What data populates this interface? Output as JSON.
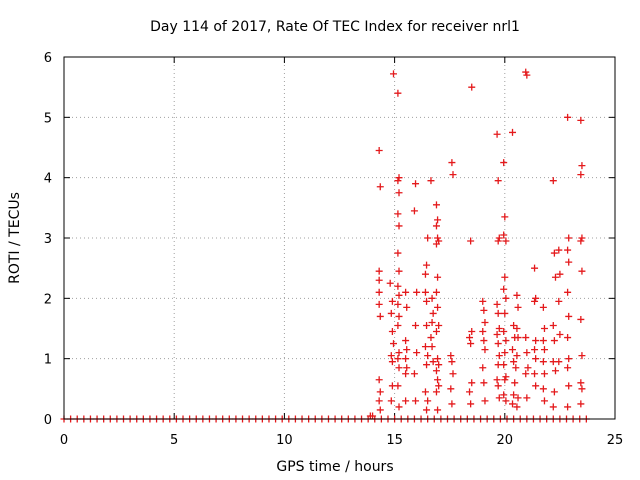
{
  "chart_data": {
    "type": "scatter",
    "title": "Day 114 of 2017, Rate Of TEC Index for receiver nrl1",
    "xlabel": "GPS time / hours",
    "ylabel": "ROTI / TECUs",
    "xlim": [
      0,
      25
    ],
    "ylim": [
      0,
      6
    ],
    "xticks": [
      "0",
      "5",
      "10",
      "15",
      "20",
      "25"
    ],
    "yticks": [
      "0",
      "1",
      "2",
      "3",
      "4",
      "5",
      "6"
    ],
    "grid": true,
    "marker": "plus",
    "color": "#e41a1c",
    "series": [
      {
        "points": [
          [
            0.0,
            0.0
          ],
          [
            0.3,
            0.0
          ],
          [
            0.6,
            0.0
          ],
          [
            0.9,
            0.0
          ],
          [
            1.2,
            0.0
          ],
          [
            1.5,
            0.0
          ],
          [
            1.8,
            0.0
          ],
          [
            2.1,
            0.0
          ],
          [
            2.4,
            0.0
          ],
          [
            2.7,
            0.0
          ],
          [
            3.0,
            0.0
          ],
          [
            3.3,
            0.0
          ],
          [
            3.6,
            0.0
          ],
          [
            3.9,
            0.0
          ],
          [
            4.2,
            0.0
          ],
          [
            4.5,
            0.0
          ],
          [
            4.8,
            0.0
          ],
          [
            5.1,
            0.0
          ],
          [
            5.4,
            0.0
          ],
          [
            5.7,
            0.0
          ],
          [
            6.0,
            0.0
          ],
          [
            6.3,
            0.0
          ],
          [
            6.6,
            0.0
          ],
          [
            6.9,
            0.0
          ],
          [
            7.2,
            0.0
          ],
          [
            7.5,
            0.0
          ],
          [
            7.8,
            0.0
          ],
          [
            8.1,
            0.0
          ],
          [
            8.4,
            0.0
          ],
          [
            8.7,
            0.0
          ],
          [
            9.0,
            0.0
          ],
          [
            9.3,
            0.0
          ],
          [
            9.6,
            0.0
          ],
          [
            9.9,
            0.0
          ],
          [
            10.2,
            0.0
          ],
          [
            10.5,
            0.0
          ],
          [
            10.8,
            0.0
          ],
          [
            11.1,
            0.0
          ],
          [
            11.4,
            0.0
          ],
          [
            11.7,
            0.0
          ],
          [
            12.0,
            0.0
          ],
          [
            12.3,
            0.0
          ],
          [
            12.6,
            0.0
          ],
          [
            12.9,
            0.0
          ],
          [
            13.2,
            0.0
          ],
          [
            13.5,
            0.0
          ],
          [
            13.8,
            0.0
          ],
          [
            14.1,
            0.0
          ],
          [
            14.4,
            0.0
          ],
          [
            14.7,
            0.0
          ],
          [
            15.0,
            0.0
          ],
          [
            15.3,
            0.0
          ],
          [
            15.6,
            0.0
          ],
          [
            15.9,
            0.0
          ],
          [
            16.2,
            0.0
          ],
          [
            16.5,
            0.0
          ],
          [
            16.8,
            0.0
          ],
          [
            17.1,
            0.0
          ],
          [
            17.4,
            0.0
          ],
          [
            17.7,
            0.0
          ],
          [
            18.0,
            0.0
          ],
          [
            18.3,
            0.0
          ],
          [
            18.6,
            0.0
          ],
          [
            18.9,
            0.0
          ],
          [
            19.2,
            0.0
          ],
          [
            19.5,
            0.0
          ],
          [
            19.8,
            0.0
          ],
          [
            20.1,
            0.0
          ],
          [
            20.4,
            0.0
          ],
          [
            20.7,
            0.0
          ],
          [
            21.0,
            0.0
          ],
          [
            21.3,
            0.0
          ],
          [
            21.6,
            0.0
          ],
          [
            21.9,
            0.0
          ],
          [
            22.2,
            0.0
          ],
          [
            22.5,
            0.0
          ],
          [
            22.8,
            0.0
          ],
          [
            23.1,
            0.0
          ],
          [
            23.4,
            0.0
          ],
          [
            23.7,
            0.0
          ],
          [
            13.9,
            0.05
          ],
          [
            14.0,
            0.05
          ],
          [
            14.3,
            4.45
          ],
          [
            14.35,
            3.85
          ],
          [
            14.3,
            2.45
          ],
          [
            14.3,
            2.3
          ],
          [
            14.3,
            2.1
          ],
          [
            14.3,
            1.9
          ],
          [
            14.35,
            1.7
          ],
          [
            14.3,
            0.65
          ],
          [
            14.35,
            0.45
          ],
          [
            14.3,
            0.3
          ],
          [
            14.35,
            0.15
          ],
          [
            14.95,
            5.72
          ],
          [
            14.8,
            2.25
          ],
          [
            14.9,
            1.95
          ],
          [
            14.85,
            1.75
          ],
          [
            14.9,
            1.45
          ],
          [
            14.95,
            1.25
          ],
          [
            14.85,
            1.05
          ],
          [
            14.9,
            0.95
          ],
          [
            14.9,
            0.55
          ],
          [
            14.85,
            0.3
          ],
          [
            15.15,
            5.4
          ],
          [
            15.2,
            4.0
          ],
          [
            15.15,
            3.95
          ],
          [
            15.2,
            3.75
          ],
          [
            15.15,
            3.4
          ],
          [
            15.2,
            3.2
          ],
          [
            15.15,
            2.75
          ],
          [
            15.2,
            2.45
          ],
          [
            15.15,
            2.2
          ],
          [
            15.2,
            2.05
          ],
          [
            15.15,
            1.9
          ],
          [
            15.2,
            1.7
          ],
          [
            15.15,
            1.55
          ],
          [
            15.2,
            1.1
          ],
          [
            15.15,
            1.0
          ],
          [
            15.2,
            0.85
          ],
          [
            15.15,
            0.55
          ],
          [
            15.2,
            0.2
          ],
          [
            15.5,
            2.1
          ],
          [
            15.55,
            1.85
          ],
          [
            15.5,
            1.3
          ],
          [
            15.55,
            1.15
          ],
          [
            15.5,
            1.0
          ],
          [
            15.55,
            0.85
          ],
          [
            15.5,
            0.75
          ],
          [
            15.5,
            0.3
          ],
          [
            15.95,
            3.9
          ],
          [
            15.9,
            3.45
          ],
          [
            16.0,
            2.1
          ],
          [
            15.95,
            1.55
          ],
          [
            16.0,
            1.1
          ],
          [
            15.9,
            0.75
          ],
          [
            15.95,
            0.3
          ],
          [
            16.4,
            2.1
          ],
          [
            16.45,
            1.95
          ],
          [
            16.5,
            3.0
          ],
          [
            16.45,
            2.55
          ],
          [
            16.4,
            2.4
          ],
          [
            16.45,
            1.55
          ],
          [
            16.4,
            1.2
          ],
          [
            16.5,
            1.05
          ],
          [
            16.45,
            0.9
          ],
          [
            16.4,
            0.45
          ],
          [
            16.5,
            0.3
          ],
          [
            16.45,
            0.15
          ],
          [
            16.65,
            3.95
          ],
          [
            16.7,
            2.0
          ],
          [
            16.75,
            1.75
          ],
          [
            16.7,
            1.6
          ],
          [
            16.65,
            1.35
          ],
          [
            16.7,
            1.2
          ],
          [
            16.75,
            0.95
          ],
          [
            16.9,
            3.55
          ],
          [
            16.95,
            3.3
          ],
          [
            16.9,
            3.2
          ],
          [
            16.95,
            3.0
          ],
          [
            17.0,
            2.95
          ],
          [
            16.9,
            2.9
          ],
          [
            16.95,
            2.35
          ],
          [
            16.9,
            2.1
          ],
          [
            16.95,
            1.85
          ],
          [
            17.0,
            1.55
          ],
          [
            16.9,
            1.45
          ],
          [
            16.95,
            1.0
          ],
          [
            17.0,
            0.9
          ],
          [
            16.9,
            0.8
          ],
          [
            16.95,
            0.65
          ],
          [
            17.0,
            0.55
          ],
          [
            16.9,
            0.45
          ],
          [
            16.95,
            0.15
          ],
          [
            17.6,
            4.25
          ],
          [
            17.65,
            4.05
          ],
          [
            17.55,
            1.05
          ],
          [
            17.6,
            0.95
          ],
          [
            17.65,
            0.75
          ],
          [
            17.55,
            0.5
          ],
          [
            17.6,
            0.25
          ],
          [
            18.5,
            5.5
          ],
          [
            18.45,
            2.95
          ],
          [
            18.5,
            1.45
          ],
          [
            18.4,
            1.35
          ],
          [
            18.45,
            1.25
          ],
          [
            18.5,
            0.6
          ],
          [
            18.4,
            0.45
          ],
          [
            18.45,
            0.25
          ],
          [
            19.0,
            1.95
          ],
          [
            19.05,
            1.8
          ],
          [
            19.1,
            1.6
          ],
          [
            19.0,
            1.45
          ],
          [
            19.05,
            1.3
          ],
          [
            19.1,
            1.15
          ],
          [
            19.0,
            0.85
          ],
          [
            19.05,
            0.6
          ],
          [
            19.1,
            0.3
          ],
          [
            19.65,
            4.72
          ],
          [
            19.7,
            3.95
          ],
          [
            19.75,
            3.0
          ],
          [
            19.7,
            2.95
          ],
          [
            19.65,
            1.9
          ],
          [
            19.7,
            1.75
          ],
          [
            19.75,
            1.5
          ],
          [
            19.65,
            1.4
          ],
          [
            19.7,
            1.25
          ],
          [
            19.75,
            1.05
          ],
          [
            19.7,
            0.9
          ],
          [
            19.65,
            0.65
          ],
          [
            19.7,
            0.55
          ],
          [
            19.75,
            0.35
          ],
          [
            19.95,
            4.25
          ],
          [
            20.0,
            3.35
          ],
          [
            19.95,
            3.05
          ],
          [
            20.05,
            2.95
          ],
          [
            20.0,
            2.35
          ],
          [
            19.95,
            2.15
          ],
          [
            20.05,
            2.0
          ],
          [
            20.0,
            1.75
          ],
          [
            19.95,
            1.45
          ],
          [
            20.05,
            1.3
          ],
          [
            20.0,
            1.1
          ],
          [
            19.95,
            0.9
          ],
          [
            20.05,
            0.7
          ],
          [
            20.0,
            0.65
          ],
          [
            19.95,
            0.4
          ],
          [
            20.05,
            0.3
          ],
          [
            20.35,
            4.75
          ],
          [
            20.4,
            1.55
          ],
          [
            20.45,
            1.35
          ],
          [
            20.35,
            1.15
          ],
          [
            20.4,
            0.95
          ],
          [
            20.5,
            0.85
          ],
          [
            20.45,
            0.6
          ],
          [
            20.4,
            0.4
          ],
          [
            20.35,
            0.25
          ],
          [
            20.55,
            2.05
          ],
          [
            20.6,
            1.85
          ],
          [
            20.55,
            1.5
          ],
          [
            20.6,
            1.35
          ],
          [
            20.55,
            1.05
          ],
          [
            20.6,
            0.35
          ],
          [
            20.55,
            0.2
          ],
          [
            20.95,
            5.75
          ],
          [
            21.0,
            5.7
          ],
          [
            20.95,
            1.35
          ],
          [
            21.0,
            1.1
          ],
          [
            21.05,
            0.85
          ],
          [
            20.95,
            0.75
          ],
          [
            21.0,
            0.35
          ],
          [
            21.35,
            2.5
          ],
          [
            21.4,
            2.0
          ],
          [
            21.35,
            1.95
          ],
          [
            21.4,
            1.3
          ],
          [
            21.35,
            1.15
          ],
          [
            21.4,
            1.0
          ],
          [
            21.35,
            0.75
          ],
          [
            21.4,
            0.55
          ],
          [
            21.75,
            1.85
          ],
          [
            21.8,
            1.5
          ],
          [
            21.75,
            1.3
          ],
          [
            21.8,
            1.15
          ],
          [
            21.75,
            0.95
          ],
          [
            21.8,
            0.75
          ],
          [
            21.75,
            0.5
          ],
          [
            21.8,
            0.3
          ],
          [
            22.2,
            3.95
          ],
          [
            22.25,
            2.75
          ],
          [
            22.3,
            2.35
          ],
          [
            22.2,
            1.55
          ],
          [
            22.25,
            1.3
          ],
          [
            22.2,
            0.95
          ],
          [
            22.3,
            0.8
          ],
          [
            22.25,
            0.45
          ],
          [
            22.2,
            0.2
          ],
          [
            22.45,
            2.8
          ],
          [
            22.5,
            2.4
          ],
          [
            22.45,
            1.95
          ],
          [
            22.5,
            1.4
          ],
          [
            22.45,
            0.95
          ],
          [
            22.85,
            5.0
          ],
          [
            22.9,
            3.0
          ],
          [
            22.85,
            2.8
          ],
          [
            22.9,
            2.6
          ],
          [
            22.85,
            2.1
          ],
          [
            22.9,
            1.7
          ],
          [
            22.85,
            1.35
          ],
          [
            22.9,
            1.0
          ],
          [
            22.85,
            0.85
          ],
          [
            22.9,
            0.55
          ],
          [
            22.85,
            0.2
          ],
          [
            23.45,
            4.95
          ],
          [
            23.5,
            4.2
          ],
          [
            23.45,
            4.05
          ],
          [
            23.5,
            3.0
          ],
          [
            23.45,
            2.95
          ],
          [
            23.5,
            2.45
          ],
          [
            23.45,
            1.65
          ],
          [
            23.5,
            1.05
          ],
          [
            23.45,
            0.6
          ],
          [
            23.5,
            0.5
          ],
          [
            23.45,
            0.25
          ]
        ]
      }
    ]
  }
}
